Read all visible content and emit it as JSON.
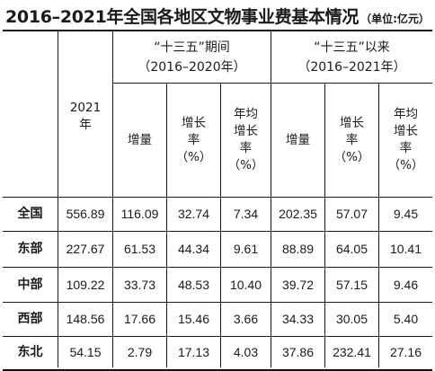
{
  "title": "2016–2021年全国各地区文物事业费基本情况",
  "unit": "（单位:亿元）",
  "headers": {
    "year2021": "2021\n年",
    "group1": "“十三五”期间",
    "group1_sub": "（2016–2020年）",
    "group2": "“十三五”以来",
    "group2_sub": "（2016–2021年）",
    "cols": [
      "增量",
      "增长\n率\n（%）",
      "年均\n增长\n率\n（%）",
      "增量",
      "增长\n率\n（%）",
      "年均\n增长\n率\n（%）"
    ]
  },
  "rows": [
    {
      "region": "全国",
      "values": [
        "556.89",
        "116.09",
        "32.74",
        "7.34",
        "202.35",
        "57.07",
        "9.45"
      ]
    },
    {
      "region": "东部",
      "values": [
        "227.67",
        "61.53",
        "44.34",
        "9.61",
        "88.89",
        "64.05",
        "10.41"
      ]
    },
    {
      "region": "中部",
      "values": [
        "109.22",
        "33.73",
        "48.53",
        "10.40",
        "39.72",
        "57.15",
        "9.46"
      ]
    },
    {
      "region": "西部",
      "values": [
        "148.56",
        "17.66",
        "15.46",
        "3.66",
        "34.33",
        "30.05",
        "5.40"
      ]
    },
    {
      "region": "东北",
      "values": [
        "54.15",
        "2.79",
        "17.13",
        "4.03",
        "37.86",
        "232.41",
        "27.16"
      ]
    }
  ]
}
